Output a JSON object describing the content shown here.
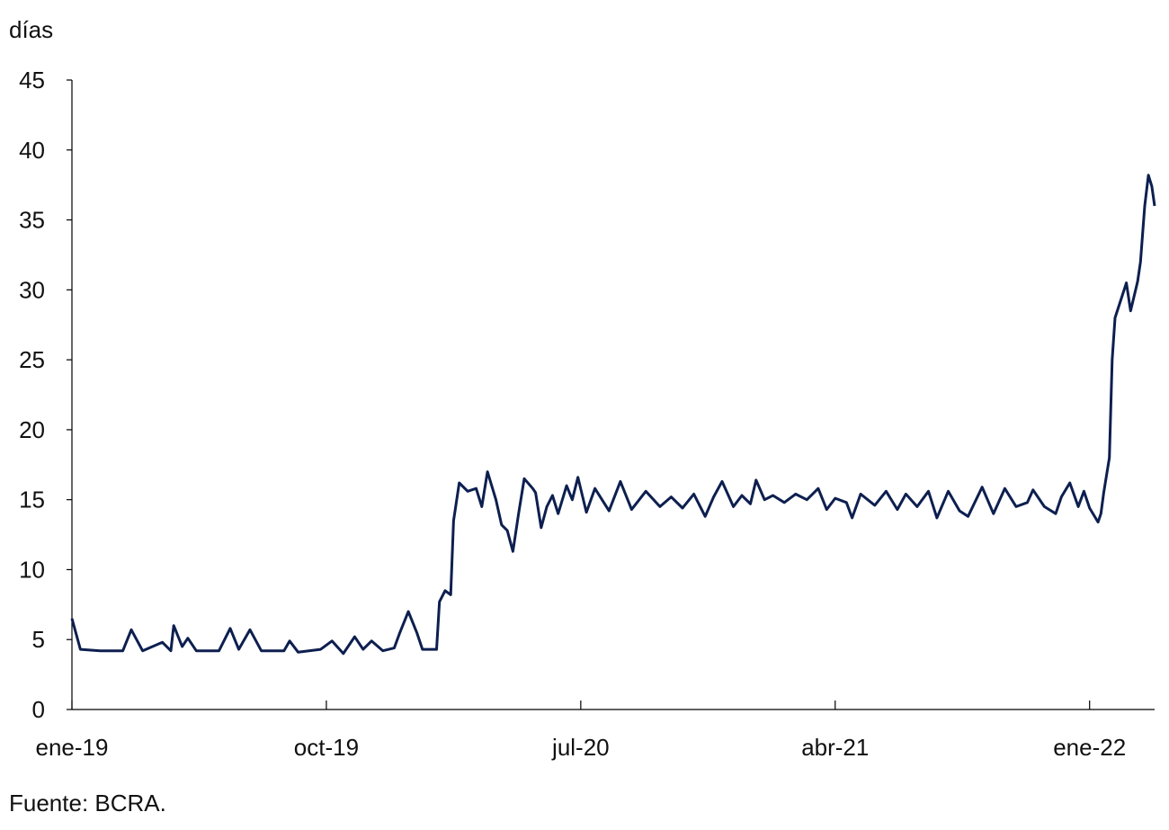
{
  "chart_data": {
    "type": "line",
    "y_label": "días",
    "source": "Fuente: BCRA.",
    "xlim": [
      0,
      38.3
    ],
    "xticks": [
      {
        "value": 0,
        "label": "ene-19"
      },
      {
        "value": 9,
        "label": "oct-19"
      },
      {
        "value": 18,
        "label": "jul-20"
      },
      {
        "value": 27,
        "label": "abr-21"
      },
      {
        "value": 36,
        "label": "ene-22"
      }
    ],
    "ylim": [
      0,
      45
    ],
    "yticks": [
      0,
      5,
      10,
      15,
      20,
      25,
      30,
      35,
      40,
      45
    ],
    "series": [
      {
        "name": "días",
        "color": "#0d1f4f",
        "x": [
          0,
          0.3,
          1.0,
          1.8,
          2.1,
          2.5,
          3.2,
          3.5,
          3.6,
          3.9,
          4.1,
          4.4,
          5.2,
          5.6,
          5.9,
          6.3,
          6.7,
          7.5,
          7.7,
          8.0,
          8.8,
          9.2,
          9.6,
          10.0,
          10.3,
          10.6,
          11.0,
          11.4,
          11.6,
          11.9,
          12.2,
          12.4,
          12.9,
          13.0,
          13.2,
          13.4,
          13.5,
          13.7,
          14.0,
          14.3,
          14.5,
          14.7,
          15.0,
          15.2,
          15.4,
          15.6,
          15.8,
          16.0,
          16.3,
          16.4,
          16.6,
          16.8,
          17.0,
          17.2,
          17.5,
          17.7,
          17.9,
          18.2,
          18.5,
          19.0,
          19.4,
          19.8,
          20.3,
          20.8,
          21.2,
          21.6,
          22.0,
          22.4,
          22.7,
          23.0,
          23.4,
          23.7,
          24.0,
          24.2,
          24.5,
          24.8,
          25.2,
          25.6,
          26.0,
          26.4,
          26.7,
          27.0,
          27.4,
          27.6,
          27.9,
          28.4,
          28.8,
          29.2,
          29.5,
          29.9,
          30.3,
          30.6,
          31.0,
          31.4,
          31.7,
          32.2,
          32.6,
          33.0,
          33.4,
          33.8,
          34.0,
          34.4,
          34.8,
          35.0,
          35.3,
          35.6,
          35.8,
          36.0,
          36.3,
          36.4,
          36.5,
          36.7,
          36.8,
          36.9,
          37.3,
          37.45,
          37.7,
          37.8,
          37.95,
          38.08,
          38.2,
          38.3
        ],
        "values": [
          6.5,
          4.3,
          4.2,
          4.2,
          5.7,
          4.2,
          4.8,
          4.2,
          6.0,
          4.5,
          5.1,
          4.2,
          4.2,
          5.8,
          4.3,
          5.7,
          4.2,
          4.2,
          4.9,
          4.1,
          4.3,
          4.9,
          4.0,
          5.2,
          4.3,
          4.9,
          4.2,
          4.4,
          5.5,
          7.0,
          5.5,
          4.3,
          4.3,
          7.7,
          8.5,
          8.2,
          13.5,
          16.2,
          15.6,
          15.8,
          14.5,
          17.0,
          15.0,
          13.2,
          12.8,
          11.3,
          14.0,
          16.5,
          15.8,
          15.5,
          13.0,
          14.5,
          15.3,
          14.0,
          16.0,
          15.0,
          16.6,
          14.1,
          15.8,
          14.2,
          16.3,
          14.3,
          15.6,
          14.5,
          15.2,
          14.4,
          15.4,
          13.8,
          15.2,
          16.3,
          14.5,
          15.3,
          14.7,
          16.4,
          15.0,
          15.3,
          14.8,
          15.4,
          15.0,
          15.8,
          14.3,
          15.1,
          14.8,
          13.7,
          15.4,
          14.6,
          15.6,
          14.3,
          15.4,
          14.5,
          15.6,
          13.7,
          15.6,
          14.2,
          13.8,
          15.9,
          14.0,
          15.8,
          14.5,
          14.8,
          15.7,
          14.5,
          14.0,
          15.2,
          16.2,
          14.5,
          15.6,
          14.4,
          13.4,
          14.0,
          15.5,
          18.0,
          25.0,
          28.0,
          30.5,
          28.5,
          30.6,
          32.0,
          36.0,
          38.2,
          37.4,
          36.0
        ]
      }
    ]
  }
}
